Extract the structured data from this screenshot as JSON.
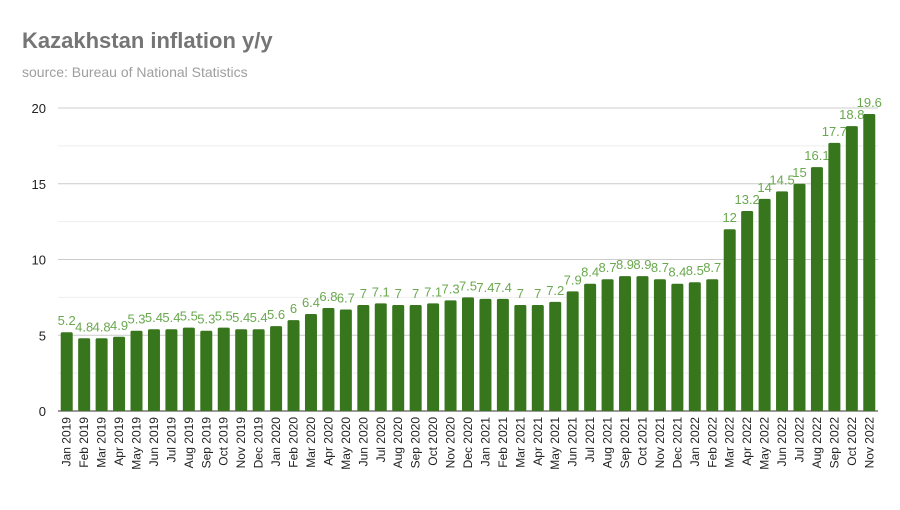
{
  "chart_data": {
    "type": "bar",
    "title": "Kazakhstan inflation y/y",
    "subtitle": "source: Bureau of National Statistics",
    "xlabel": "",
    "ylabel": "",
    "ylim": [
      0,
      20
    ],
    "yticks": [
      0,
      5,
      10,
      15,
      20
    ],
    "grid": true,
    "bar_color": "#38761d",
    "label_color": "#6aa84f",
    "categories": [
      "Jan 2019",
      "Feb 2019",
      "Mar 2019",
      "Apr 2019",
      "May 2019",
      "Jun 2019",
      "Jul 2019",
      "Aug 2019",
      "Sep 2019",
      "Oct 2019",
      "Nov 2019",
      "Dec 2019",
      "Jan 2020",
      "Feb 2020",
      "Mar 2020",
      "Apr 2020",
      "May 2020",
      "Jun 2020",
      "Jul 2020",
      "Aug 2020",
      "Sep 2020",
      "Oct 2020",
      "Nov 2020",
      "Dec 2020",
      "Jan 2021",
      "Feb 2021",
      "Mar 2021",
      "Apr 2021",
      "May 2021",
      "Jun 2021",
      "Jul 2021",
      "Aug 2021",
      "Sep 2021",
      "Oct 2021",
      "Nov 2021",
      "Dec 2021",
      "Jan 2022",
      "Feb 2022",
      "Mar 2022",
      "Apr 2022",
      "May 2022",
      "Jun 2022",
      "Jul 2022",
      "Aug 2022",
      "Sep 2022",
      "Oct 2022",
      "Nov 2022"
    ],
    "values": [
      5.2,
      4.8,
      4.8,
      4.9,
      5.3,
      5.4,
      5.4,
      5.5,
      5.3,
      5.5,
      5.4,
      5.4,
      5.6,
      6,
      6.4,
      6.8,
      6.7,
      7,
      7.1,
      7,
      7,
      7.1,
      7.3,
      7.5,
      7.4,
      7.4,
      7,
      7,
      7.2,
      7.9,
      8.4,
      8.7,
      8.9,
      8.9,
      8.7,
      8.4,
      8.5,
      8.7,
      12,
      13.2,
      14,
      14.5,
      15,
      16.1,
      17.7,
      18.8,
      19.6
    ]
  }
}
